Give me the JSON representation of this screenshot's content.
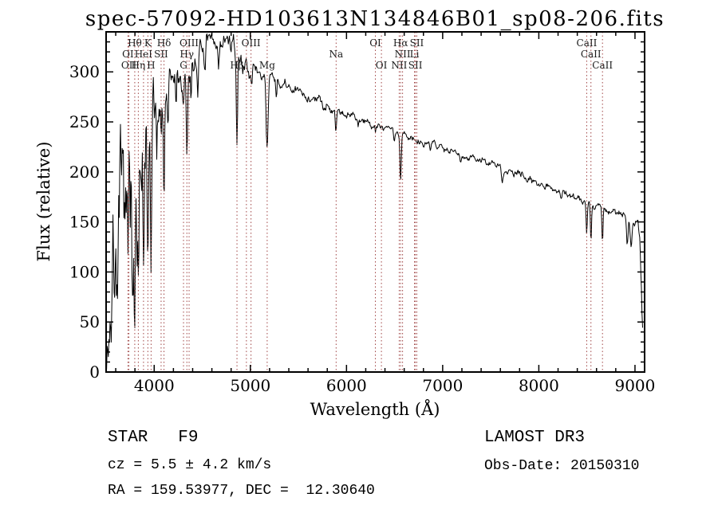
{
  "chart_data": {
    "type": "line",
    "title": "spec-57092-HD103613N134846B01_sp08-206.fits",
    "xlabel": "Wavelength (Å)",
    "ylabel": "Flux (relative)",
    "xlim": [
      3500,
      9100
    ],
    "ylim": [
      0,
      340
    ],
    "xticks": [
      4000,
      5000,
      6000,
      7000,
      8000,
      9000
    ],
    "yticks": [
      0,
      50,
      100,
      150,
      200,
      250,
      300
    ],
    "x_minor_step": 200,
    "y_minor_step": 10,
    "line_color": "#000000",
    "marker_line_color": "#a04545",
    "background": "#ffffff",
    "legend": "none",
    "grid": false,
    "noise_seed": 7,
    "spectrum_start": 3505,
    "spectrum_end": 9080,
    "spectrum_step": 6,
    "continuum_points": [
      [
        3505,
        30
      ],
      [
        3540,
        75
      ],
      [
        3580,
        105
      ],
      [
        3620,
        125
      ],
      [
        3660,
        140
      ],
      [
        3700,
        152
      ],
      [
        3740,
        162
      ],
      [
        3780,
        170
      ],
      [
        3820,
        178
      ],
      [
        3860,
        188
      ],
      [
        3900,
        200
      ],
      [
        3940,
        218
      ],
      [
        3980,
        240
      ],
      [
        4020,
        262
      ],
      [
        4060,
        272
      ],
      [
        4100,
        278
      ],
      [
        4150,
        284
      ],
      [
        4200,
        290
      ],
      [
        4250,
        294
      ],
      [
        4300,
        298
      ],
      [
        4350,
        302
      ],
      [
        4400,
        308
      ],
      [
        4450,
        314
      ],
      [
        4500,
        318
      ],
      [
        4550,
        322
      ],
      [
        4600,
        326
      ],
      [
        4650,
        328
      ],
      [
        4700,
        330
      ],
      [
        4750,
        330
      ],
      [
        4800,
        327
      ],
      [
        4850,
        322
      ],
      [
        4900,
        314
      ],
      [
        4950,
        308
      ],
      [
        5000,
        303
      ],
      [
        5050,
        300
      ],
      [
        5100,
        298
      ],
      [
        5150,
        296
      ],
      [
        5200,
        293
      ],
      [
        5300,
        289
      ],
      [
        5400,
        284
      ],
      [
        5500,
        279
      ],
      [
        5600,
        275
      ],
      [
        5700,
        271
      ],
      [
        5800,
        267
      ],
      [
        5900,
        262
      ],
      [
        6000,
        258
      ],
      [
        6100,
        254
      ],
      [
        6200,
        251
      ],
      [
        6300,
        248
      ],
      [
        6400,
        245
      ],
      [
        6500,
        241
      ],
      [
        6600,
        237
      ],
      [
        6700,
        234
      ],
      [
        6800,
        231
      ],
      [
        6900,
        228
      ],
      [
        7000,
        225
      ],
      [
        7100,
        222
      ],
      [
        7200,
        218
      ],
      [
        7300,
        215
      ],
      [
        7400,
        211
      ],
      [
        7500,
        208
      ],
      [
        7600,
        204
      ],
      [
        7700,
        200
      ],
      [
        7800,
        196
      ],
      [
        7900,
        193
      ],
      [
        8000,
        190
      ],
      [
        8100,
        186
      ],
      [
        8200,
        182
      ],
      [
        8300,
        178
      ],
      [
        8400,
        174
      ],
      [
        8500,
        171
      ],
      [
        8600,
        167
      ],
      [
        8700,
        163
      ],
      [
        8800,
        159
      ],
      [
        8900,
        155
      ],
      [
        9000,
        150
      ],
      [
        9030,
        147
      ],
      [
        9050,
        130
      ],
      [
        9065,
        90
      ],
      [
        9080,
        38
      ]
    ],
    "noise_profile": [
      [
        3505,
        55
      ],
      [
        3600,
        50
      ],
      [
        3700,
        46
      ],
      [
        3800,
        40
      ],
      [
        3900,
        34
      ],
      [
        4000,
        24
      ],
      [
        4100,
        17
      ],
      [
        4200,
        13
      ],
      [
        4300,
        11
      ],
      [
        4400,
        10
      ],
      [
        4500,
        9
      ],
      [
        4700,
        8
      ],
      [
        4900,
        6
      ],
      [
        5100,
        5
      ],
      [
        5400,
        4
      ],
      [
        5800,
        3.5
      ],
      [
        6300,
        3
      ],
      [
        7000,
        2.6
      ],
      [
        8000,
        2.6
      ],
      [
        8800,
        3
      ],
      [
        9080,
        4
      ]
    ],
    "absorption_features": [
      [
        3712,
        55,
        5
      ],
      [
        3727,
        65,
        5
      ],
      [
        3750,
        75,
        5
      ],
      [
        3771,
        75,
        5
      ],
      [
        3798,
        95,
        6
      ],
      [
        3820,
        55,
        5
      ],
      [
        3835,
        115,
        6
      ],
      [
        3868,
        60,
        5
      ],
      [
        3889,
        125,
        6
      ],
      [
        3934,
        145,
        7
      ],
      [
        3968,
        135,
        7
      ],
      [
        4026,
        35,
        5
      ],
      [
        4072,
        40,
        5
      ],
      [
        4102,
        80,
        7
      ],
      [
        4144,
        28,
        5
      ],
      [
        4227,
        32,
        5
      ],
      [
        4305,
        42,
        11
      ],
      [
        4340,
        92,
        7
      ],
      [
        4383,
        38,
        5
      ],
      [
        4455,
        22,
        5
      ],
      [
        4531,
        22,
        5
      ],
      [
        4668,
        22,
        5
      ],
      [
        4861,
        92,
        7
      ],
      [
        4921,
        18,
        5
      ],
      [
        5015,
        16,
        5
      ],
      [
        5175,
        68,
        10
      ],
      [
        5270,
        22,
        6
      ],
      [
        5890,
        22,
        6
      ],
      [
        6122,
        9,
        5
      ],
      [
        6300,
        9,
        5
      ],
      [
        6495,
        11,
        6
      ],
      [
        6563,
        50,
        7
      ],
      [
        6870,
        11,
        7
      ],
      [
        7190,
        8,
        8
      ],
      [
        7620,
        12,
        9
      ],
      [
        8230,
        7,
        8
      ],
      [
        8498,
        33,
        6
      ],
      [
        8542,
        41,
        6
      ],
      [
        8662,
        37,
        6
      ],
      [
        8920,
        26,
        9
      ],
      [
        8960,
        26,
        9
      ]
    ],
    "line_markers": [
      {
        "label": "Hθ",
        "wavelength": 3798,
        "row": 1
      },
      {
        "label": "K",
        "wavelength": 3934,
        "row": 1
      },
      {
        "label": "Hδ",
        "wavelength": 4102,
        "row": 1
      },
      {
        "label": "OIII",
        "wavelength": 4363,
        "row": 1
      },
      {
        "label": "OIII",
        "wavelength": 5007,
        "row": 1
      },
      {
        "label": "OI",
        "wavelength": 6300,
        "row": 1
      },
      {
        "label": "Hα",
        "wavelength": 6563,
        "row": 1
      },
      {
        "label": "SII",
        "wavelength": 6731,
        "row": 1
      },
      {
        "label": "CaII",
        "wavelength": 8498,
        "row": 1
      },
      {
        "label": "OI",
        "wavelength": 3727,
        "row": 2
      },
      {
        "label": "HeI",
        "wavelength": 3889,
        "row": 2
      },
      {
        "label": "SII",
        "wavelength": 4072,
        "row": 2
      },
      {
        "label": "Hγ",
        "wavelength": 4340,
        "row": 2
      },
      {
        "label": "",
        "wavelength": 4959,
        "row": 2
      },
      {
        "label": "Na",
        "wavelength": 5892,
        "row": 2
      },
      {
        "label": "NII",
        "wavelength": 6583,
        "row": 2
      },
      {
        "label": "Li",
        "wavelength": 6707,
        "row": 2
      },
      {
        "label": "CaII",
        "wavelength": 8542,
        "row": 2
      },
      {
        "label": "OII",
        "wavelength": 3737,
        "row": 3
      },
      {
        "label": "Hη",
        "wavelength": 3835,
        "row": 3
      },
      {
        "label": "H",
        "wavelength": 3968,
        "row": 3
      },
      {
        "label": "G",
        "wavelength": 4305,
        "row": 3
      },
      {
        "label": "Hβ",
        "wavelength": 4861,
        "row": 3
      },
      {
        "label": "Mg",
        "wavelength": 5175,
        "row": 3
      },
      {
        "label": "OI",
        "wavelength": 6363,
        "row": 3
      },
      {
        "label": "NII",
        "wavelength": 6548,
        "row": 3
      },
      {
        "label": "SII",
        "wavelength": 6716,
        "row": 3
      },
      {
        "label": "CaII",
        "wavelength": 8662,
        "row": 3
      }
    ]
  },
  "annotations": {
    "class_line": "STAR   F9",
    "survey": "LAMOST DR3",
    "cz_line": "cz = 5.5 ± 4.2 km/s",
    "obs_date_line": "Obs-Date: 20150310",
    "radec_line": "RA = 159.53977, DEC =  12.30640"
  }
}
